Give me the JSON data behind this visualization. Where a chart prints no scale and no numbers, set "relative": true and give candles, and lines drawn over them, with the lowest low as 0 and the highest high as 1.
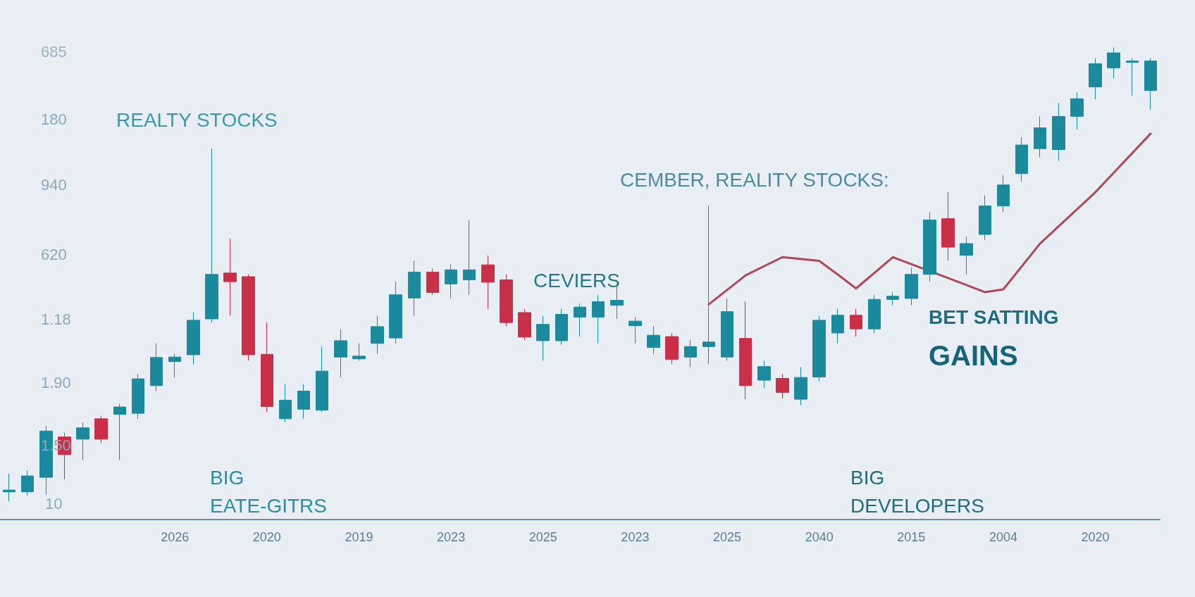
{
  "chart_data": {
    "type": "candlestick",
    "relative": true,
    "annotations": [
      "REALTY STOCKS",
      "CEMBER, REALITY STOCKS:",
      "CEVIERS",
      "BET SATTING",
      "GAINS",
      "BIG\nEATE-GITRS",
      "BIG\nDEVELOPERS",
      "685",
      "180",
      "940",
      "620",
      "1.18",
      "1.90",
      "1.50",
      "10"
    ],
    "categories": [
      null,
      null,
      null,
      null,
      null,
      null,
      null,
      null,
      null,
      "2026",
      null,
      null,
      null,
      null,
      "2020",
      null,
      null,
      null,
      null,
      "2019",
      null,
      null,
      null,
      null,
      "2023",
      null,
      null,
      null,
      null,
      "2025",
      null,
      null,
      null,
      null,
      "2023",
      null,
      null,
      null,
      null,
      "2025",
      null,
      null,
      null,
      null,
      "2040",
      null,
      null,
      null,
      null,
      "2015",
      null,
      null,
      null,
      null,
      "2004",
      null,
      null,
      null,
      null,
      "2020",
      null,
      null,
      null
    ],
    "series": [
      {
        "colors": [
          "#1b8a9c",
          "#1b8a9c",
          "#1b8a9c",
          "#c92f47",
          "#1b8a9c",
          "#c92f47",
          "#1b8a9c",
          "#1b8a9c",
          "#1b8a9c",
          "#1b8a9c",
          "#1b8a9c",
          "#1b8a9c",
          "#c92f47",
          "#c92f47",
          "#c92f47",
          "#1b8a9c",
          "#1b8a9c",
          "#1b8a9c",
          "#1b8a9c",
          "#1b8a9c",
          "#1b8a9c",
          "#1b8a9c",
          "#1b8a9c",
          "#c92f47",
          "#1b8a9c",
          "#1b8a9c",
          "#c92f47",
          "#c92f47",
          "#c92f47",
          "#1b8a9c",
          "#1b8a9c",
          "#1b8a9c",
          "#1b8a9c",
          "#1b8a9c",
          "#1b8a9c",
          "#1b8a9c",
          "#c92f47",
          "#1b8a9c",
          "#1b8a9c",
          "#1b8a9c",
          "#c92f47",
          "#1b8a9c",
          "#c92f47",
          "#1b8a9c",
          "#1b8a9c",
          "#1b8a9c",
          "#c92f47",
          "#1b8a9c",
          "#1b8a9c",
          "#1b8a9c",
          "#1b8a9c",
          "#c92f47",
          "#1b8a9c",
          "#1b8a9c",
          "#1b8a9c",
          "#1b8a9c",
          "#1b8a9c",
          "#1b8a9c",
          "#1b8a9c",
          "#1b8a9c",
          "#1b8a9c",
          "#1b8a9c",
          "#1b8a9c"
        ],
        "ohlc": [
          [
            0.021,
            0.061,
            0.0,
            0.025
          ],
          [
            0.021,
            0.068,
            0.013,
            0.056
          ],
          [
            0.053,
            0.166,
            0.015,
            0.155
          ],
          [
            0.142,
            0.151,
            0.049,
            0.103
          ],
          [
            0.137,
            0.174,
            0.091,
            0.162
          ],
          [
            0.182,
            0.189,
            0.128,
            0.137
          ],
          [
            0.192,
            0.215,
            0.091,
            0.208
          ],
          [
            0.194,
            0.281,
            0.182,
            0.27
          ],
          [
            0.255,
            0.348,
            0.243,
            0.317
          ],
          [
            0.308,
            0.325,
            0.273,
            0.318
          ],
          [
            0.323,
            0.417,
            0.302,
            0.399
          ],
          [
            0.402,
            0.777,
            0.394,
            0.5
          ],
          [
            0.503,
            0.579,
            0.409,
            0.484
          ],
          [
            0.495,
            0.5,
            0.31,
            0.323
          ],
          [
            0.324,
            0.394,
            0.197,
            0.209
          ],
          [
            0.182,
            0.258,
            0.174,
            0.223
          ],
          [
            0.203,
            0.258,
            0.182,
            0.243
          ],
          [
            0.201,
            0.341,
            0.197,
            0.287
          ],
          [
            0.318,
            0.379,
            0.273,
            0.354
          ],
          [
            0.314,
            0.348,
            0.31,
            0.32
          ],
          [
            0.348,
            0.409,
            0.325,
            0.385
          ],
          [
            0.36,
            0.484,
            0.348,
            0.455
          ],
          [
            0.448,
            0.53,
            0.409,
            0.505
          ],
          [
            0.505,
            0.513,
            0.455,
            0.46
          ],
          [
            0.479,
            0.522,
            0.447,
            0.51
          ],
          [
            0.488,
            0.62,
            0.455,
            0.51
          ],
          [
            0.521,
            0.542,
            0.424,
            0.483
          ],
          [
            0.488,
            0.5,
            0.386,
            0.394
          ],
          [
            0.416,
            0.424,
            0.355,
            0.362
          ],
          [
            0.354,
            0.409,
            0.31,
            0.39
          ],
          [
            0.354,
            0.424,
            0.345,
            0.412
          ],
          [
            0.406,
            0.436,
            0.363,
            0.428
          ],
          [
            0.406,
            0.455,
            0.348,
            0.44
          ],
          [
            0.432,
            0.48,
            0.402,
            0.443
          ],
          [
            0.387,
            0.406,
            0.348,
            0.397
          ],
          [
            0.339,
            0.386,
            0.325,
            0.366
          ],
          [
            0.363,
            0.371,
            0.302,
            0.313
          ],
          [
            0.318,
            0.356,
            0.296,
            0.341
          ],
          [
            0.341,
            0.651,
            0.302,
            0.351
          ],
          [
            0.318,
            0.447,
            0.31,
            0.418
          ],
          [
            0.359,
            0.44,
            0.225,
            0.255
          ],
          [
            0.267,
            0.31,
            0.25,
            0.297
          ],
          [
            0.271,
            0.281,
            0.227,
            0.24
          ],
          [
            0.225,
            0.296,
            0.212,
            0.273
          ],
          [
            0.274,
            0.409,
            0.265,
            0.399
          ],
          [
            0.371,
            0.424,
            0.348,
            0.41
          ],
          [
            0.41,
            0.424,
            0.363,
            0.38
          ],
          [
            0.38,
            0.455,
            0.371,
            0.445
          ],
          [
            0.445,
            0.461,
            0.432,
            0.452
          ],
          [
            0.447,
            0.515,
            0.432,
            0.5
          ],
          [
            0.5,
            0.637,
            0.484,
            0.62
          ],
          [
            0.623,
            0.681,
            0.53,
            0.56
          ],
          [
            0.542,
            0.583,
            0.5,
            0.568
          ],
          [
            0.588,
            0.674,
            0.576,
            0.651
          ],
          [
            0.651,
            0.719,
            0.637,
            0.697
          ],
          [
            0.722,
            0.802,
            0.704,
            0.785
          ],
          [
            0.777,
            0.848,
            0.758,
            0.823
          ],
          [
            0.775,
            0.878,
            0.75,
            0.848
          ],
          [
            0.848,
            0.901,
            0.819,
            0.887
          ],
          [
            0.913,
            0.976,
            0.886,
            0.964
          ],
          [
            0.955,
            1.0,
            0.932,
            0.988
          ],
          [
            0.967,
            0.976,
            0.894,
            0.97
          ],
          [
            0.905,
            0.976,
            0.863,
            0.97
          ]
        ]
      },
      {
        "type": "line",
        "color": "#b0485a",
        "values": [
          null,
          null,
          null,
          null,
          null,
          null,
          null,
          null,
          null,
          null,
          null,
          null,
          null,
          null,
          null,
          null,
          null,
          null,
          null,
          null,
          null,
          null,
          null,
          null,
          null,
          null,
          null,
          null,
          null,
          null,
          null,
          null,
          null,
          null,
          null,
          null,
          null,
          null,
          0.434,
          null,
          0.498,
          null,
          0.538,
          null,
          0.53,
          0.5,
          0.469,
          null,
          0.538,
          null,
          null,
          0.492,
          null,
          0.461,
          0.467,
          null,
          0.568,
          null,
          null,
          0.681,
          null,
          null,
          0.81
        ]
      }
    ]
  }
}
